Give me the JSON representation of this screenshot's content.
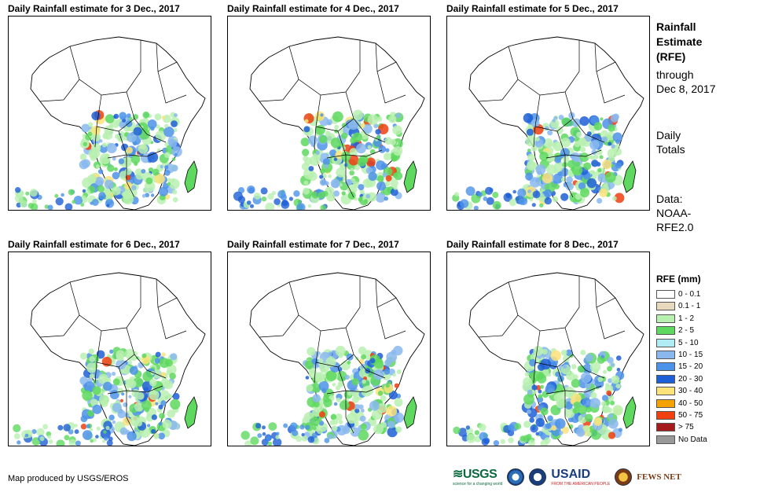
{
  "panels": [
    {
      "title": "Daily Rainfall estimate for 3 Dec., 2017"
    },
    {
      "title": "Daily Rainfall estimate for 4 Dec., 2017"
    },
    {
      "title": "Daily Rainfall estimate for 5 Dec., 2017"
    },
    {
      "title": "Daily Rainfall estimate for 6 Dec., 2017"
    },
    {
      "title": "Daily Rainfall estimate for 7 Dec., 2017"
    },
    {
      "title": "Daily Rainfall estimate for 8 Dec., 2017"
    }
  ],
  "sidebar": {
    "title_line1": "Rainfall",
    "title_line2": "Estimate",
    "title_line3": "(RFE)",
    "through": "through",
    "date": "Dec 8, 2017",
    "daily1": "Daily",
    "daily2": "Totals",
    "data1": "Data:",
    "data2": "NOAA-",
    "data3": "RFE2.0"
  },
  "legend": {
    "title": "RFE (mm)",
    "items": [
      {
        "label": "0 - 0.1",
        "color": "#ffffff"
      },
      {
        "label": "0.1 - 1",
        "color": "#e8d9bc"
      },
      {
        "label": "1 - 2",
        "color": "#b8f0b0"
      },
      {
        "label": "2 - 5",
        "color": "#5ed85e"
      },
      {
        "label": "5 - 10",
        "color": "#b0ecf4"
      },
      {
        "label": "10 - 15",
        "color": "#8ab8ee"
      },
      {
        "label": "15 - 20",
        "color": "#4c92e8"
      },
      {
        "label": "20 - 30",
        "color": "#1d5fd6"
      },
      {
        "label": "30 - 40",
        "color": "#fbe37a"
      },
      {
        "label": "40 - 50",
        "color": "#f5a300"
      },
      {
        "label": "50 - 75",
        "color": "#f04010"
      },
      {
        "label": "> 75",
        "color": "#a51a1a"
      },
      {
        "label": "No Data",
        "color": "#999999"
      }
    ]
  },
  "footer": {
    "credit": "Map produced by USGS/EROS"
  },
  "logos": {
    "usgs": "≋USGS",
    "usgs_tag": "science for a changing world",
    "usaid": "USAID",
    "usaid_tag": "FROM THE AMERICAN PEOPLE",
    "fews": "FEWS NET"
  }
}
